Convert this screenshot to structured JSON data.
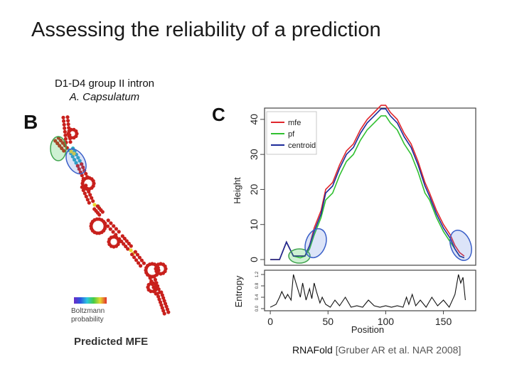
{
  "slide": {
    "title": "Assessing the reliability of a prediction",
    "subtitle_line1": "D1-D4 group II intron",
    "subtitle_line2": "A. Capsulatum",
    "citation_tool": "RNAFold",
    "citation_ref": "[Gruber AR et al. NAR 2008]"
  },
  "panel_b": {
    "letter": "B",
    "legend_line1": "Boltzmann",
    "legend_line2": "probability",
    "caption": "Predicted MFE"
  },
  "chart_data": {
    "letter": "C",
    "type": "line",
    "xlabel": "Position",
    "ylabel": "Height",
    "xlim": [
      -5,
      178
    ],
    "ylim": [
      0,
      42
    ],
    "xticks": [
      0,
      50,
      100,
      150
    ],
    "yticks": [
      0,
      10,
      20,
      30,
      40
    ],
    "legend": [
      "mfe",
      "pf",
      "centroid"
    ],
    "colors": {
      "mfe": "#e0262c",
      "pf": "#30c030",
      "centroid": "#1c2a9a"
    },
    "series": [
      {
        "name": "mfe",
        "x": [
          0,
          8,
          14,
          20,
          26,
          30,
          34,
          38,
          44,
          48,
          54,
          60,
          66,
          72,
          78,
          84,
          90,
          96,
          100,
          104,
          110,
          116,
          122,
          128,
          134,
          138,
          144,
          150,
          156,
          160,
          164,
          168
        ],
        "y": [
          0,
          0,
          5,
          1,
          1,
          1,
          4,
          9,
          14,
          20,
          22,
          27,
          31,
          33,
          37,
          40,
          42,
          44,
          44,
          42,
          40,
          36,
          33,
          28,
          22,
          19,
          14,
          10,
          7,
          4,
          2,
          1
        ]
      },
      {
        "name": "pf",
        "x": [
          0,
          8,
          14,
          20,
          26,
          30,
          34,
          38,
          44,
          48,
          54,
          60,
          66,
          72,
          78,
          84,
          90,
          96,
          100,
          104,
          110,
          116,
          122,
          128,
          134,
          138,
          144,
          150,
          156,
          160,
          164,
          168
        ],
        "y": [
          0,
          0,
          5,
          1,
          0.5,
          1,
          3,
          7,
          12,
          17,
          19,
          24,
          28,
          30,
          34,
          37,
          39,
          41,
          41,
          39,
          37,
          33,
          30,
          25,
          19,
          17,
          12,
          8,
          5,
          3,
          1,
          0.5
        ]
      },
      {
        "name": "centroid",
        "x": [
          0,
          8,
          14,
          20,
          26,
          30,
          34,
          38,
          44,
          48,
          54,
          60,
          66,
          72,
          78,
          84,
          90,
          96,
          100,
          104,
          110,
          116,
          122,
          128,
          134,
          138,
          144,
          150,
          156,
          160,
          164,
          168
        ],
        "y": [
          0,
          0,
          5,
          1,
          1,
          1,
          4,
          8,
          13,
          19,
          21,
          26,
          30,
          32,
          36,
          39,
          41,
          43,
          43,
          41,
          39,
          35,
          32,
          27,
          21,
          18,
          13,
          9,
          6,
          3,
          1,
          0.5
        ]
      }
    ],
    "entropy": {
      "ylabel": "Entropy",
      "yticks": [
        "0.0",
        "0.4",
        "0.8",
        "1.2"
      ],
      "ylim": [
        0,
        1.3
      ],
      "x": [
        0,
        5,
        8,
        10,
        13,
        15,
        18,
        20,
        23,
        26,
        28,
        31,
        34,
        36,
        38,
        40,
        43,
        45,
        48,
        52,
        56,
        60,
        65,
        70,
        75,
        80,
        85,
        90,
        95,
        100,
        105,
        110,
        115,
        118,
        120,
        123,
        126,
        130,
        135,
        140,
        145,
        150,
        155,
        160,
        163,
        165,
        167,
        169
      ],
      "y": [
        0.05,
        0.15,
        0.4,
        0.6,
        0.35,
        0.5,
        0.3,
        1.2,
        0.8,
        0.4,
        0.9,
        0.3,
        0.7,
        0.35,
        0.9,
        0.6,
        0.2,
        0.4,
        0.15,
        0.05,
        0.3,
        0.1,
        0.4,
        0.05,
        0.1,
        0.05,
        0.3,
        0.1,
        0.05,
        0.1,
        0.05,
        0.1,
        0.05,
        0.4,
        0.15,
        0.5,
        0.1,
        0.3,
        0.05,
        0.4,
        0.1,
        0.3,
        0.05,
        0.5,
        1.2,
        0.9,
        1.1,
        0.3
      ]
    }
  }
}
